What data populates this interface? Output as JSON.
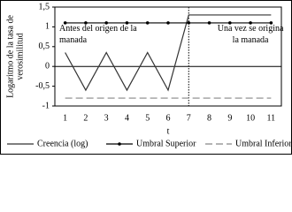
{
  "chart_data": {
    "type": "line",
    "ylabel": [
      "Logaritmo de la tasa de",
      "verosimilitud"
    ],
    "xlabel": "t",
    "categories": [
      "1",
      "2",
      "3",
      "4",
      "5",
      "6",
      "7",
      "8",
      "9",
      "10",
      "11"
    ],
    "series": [
      {
        "name": "Creencia (log)",
        "color": "#333333",
        "style": "solid",
        "values": [
          0.35,
          -0.6,
          0.35,
          -0.6,
          0.35,
          -0.6,
          1.3,
          1.3,
          1.3,
          1.3,
          1.3
        ]
      },
      {
        "name": "Umbral Superior",
        "color": "#000000",
        "style": "dots",
        "values": [
          1.1,
          1.1,
          1.1,
          1.1,
          1.1,
          1.1,
          1.1,
          1.1,
          1.1,
          1.1,
          1.1
        ]
      },
      {
        "name": "Umbral Inferior",
        "color": "#888888",
        "style": "dashed",
        "values": [
          -0.8,
          -0.8,
          -0.8,
          -0.8,
          -0.8,
          -0.8,
          -0.8,
          -0.8,
          -0.8,
          -0.8,
          -0.8
        ]
      }
    ],
    "ylim": [
      -1,
      1.5
    ],
    "yticks": [
      {
        "value": 1.5,
        "label": "1,5"
      },
      1,
      {
        "value": 0.5,
        "label": "0,5"
      },
      0,
      {
        "value": -0.5,
        "label": "-0,5"
      },
      -1
    ],
    "vertical_line": "7",
    "annotations": [
      [
        "Antes del origen de la",
        "manada"
      ],
      [
        "Una vez se origina",
        "la manada"
      ]
    ],
    "legend": "bottom"
  }
}
